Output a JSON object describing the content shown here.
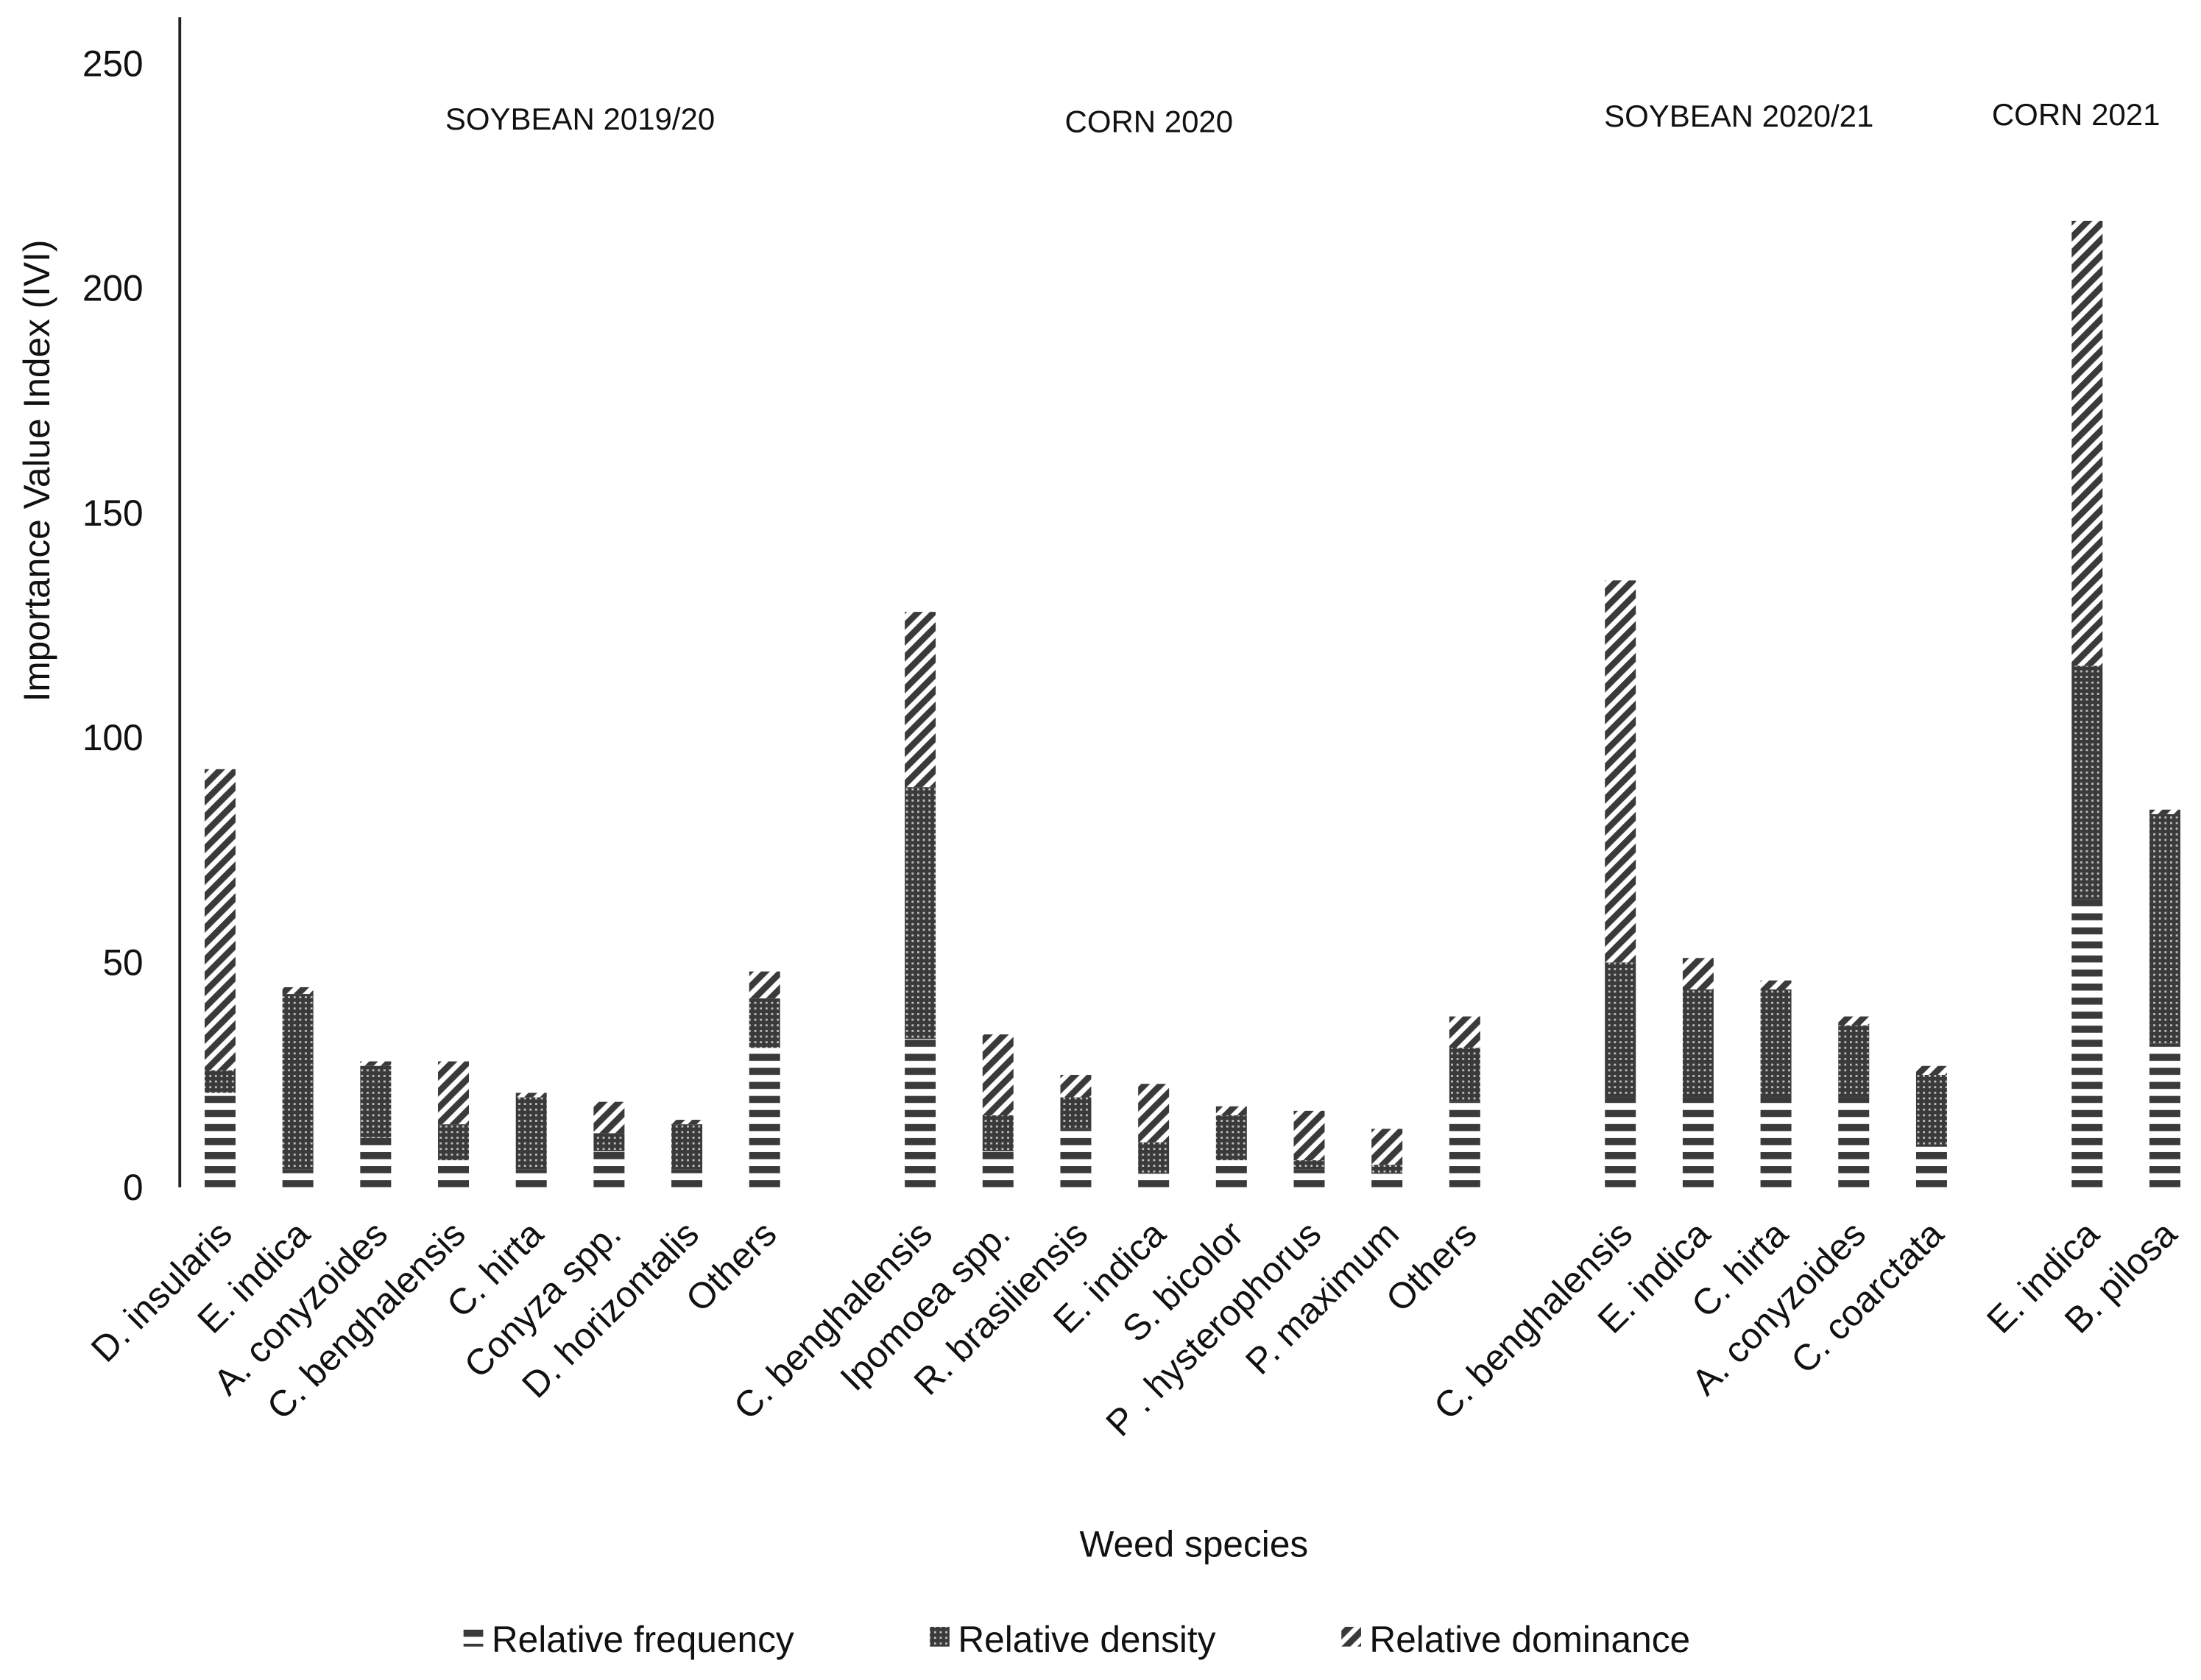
{
  "chart_data": {
    "type": "stacked_bar",
    "y_label": "Importance Value Index (IVI)",
    "x_label": "Weed species",
    "annotations": [
      "SOYBEAN 2019/20",
      "CORN 2020",
      "SOYBEAN 2020/21",
      "CORN 2021"
    ],
    "categories": [
      "D. insularis",
      "E. indica",
      "A. conyzoides",
      "C. benghalensis",
      "C. hirta",
      "Conyza spp.",
      "D. horizontalis",
      "Others",
      null,
      "C. benghalensis",
      "Ipomoea spp.",
      "R. brasiliensis",
      "E. indica",
      "S. bicolor",
      "P . hysterophorus",
      "P. maximum",
      "Others",
      null,
      "C. benghalensis",
      "E. indica",
      "C. hirta",
      "A. conyzoides",
      "C. coarctata",
      null,
      "E. indica",
      "B. pilosa"
    ],
    "series": [
      {
        "name": "Relative frequency",
        "color": "#3a3a3a",
        "pattern": "horizontal",
        "values": [
          21,
          4,
          11,
          6,
          4,
          8,
          4,
          31,
          null,
          33,
          8,
          13,
          3,
          6,
          4,
          3,
          19,
          null,
          20,
          20,
          20,
          20,
          9,
          null,
          64,
          32
        ]
      },
      {
        "name": "Relative density",
        "color": "#3a3a3a",
        "pattern": "dots",
        "values": [
          5,
          39,
          16,
          8,
          16,
          4,
          10,
          11,
          null,
          56,
          8,
          7,
          7,
          10,
          2,
          2,
          12,
          null,
          30,
          24,
          24,
          16,
          16,
          null,
          52,
          51
        ]
      },
      {
        "name": "Relative dominance",
        "color": "#3a3a3a",
        "pattern": "diagonal",
        "values": [
          67,
          1.5,
          1,
          14,
          1,
          7,
          1,
          6,
          null,
          39,
          18,
          5,
          13,
          2,
          11,
          8,
          7,
          null,
          85,
          7,
          2,
          2,
          2,
          null,
          99,
          1
        ]
      }
    ],
    "ylim": [
      0,
      260
    ],
    "yticks": [
      0,
      50,
      100,
      150,
      200,
      250
    ],
    "grid": false,
    "legend": "bottom"
  }
}
